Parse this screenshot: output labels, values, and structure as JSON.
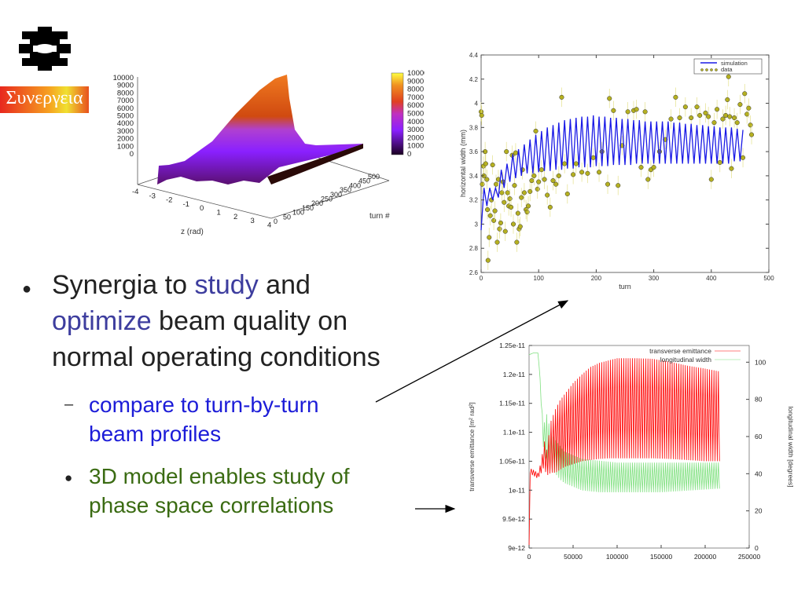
{
  "logos": {
    "lab_logo": "fermilab-logo-icon",
    "synergia_text": "Συνεργεια"
  },
  "bullets": {
    "main": {
      "marker": "●",
      "part1": "Synergia to ",
      "study": "study",
      "part2": " and",
      "optimize": "optimize",
      "part3": " beam quality on",
      "line3": "normal operating conditions"
    },
    "sub1": {
      "marker": "–",
      "line1": "compare to turn-by-turn",
      "line2": "beam profiles"
    },
    "sub2": {
      "marker": "●",
      "line1": "3D model enables study of",
      "line2": "phase space correlations"
    }
  },
  "colors": {
    "blue_text": "#1c1cd8",
    "purple_text": "#3d3d9e",
    "green_text": "#3a6b12",
    "simulation": "#1a1ae6",
    "data": "#b5b020",
    "emittance": "#ff0000",
    "longitudinal": "#7fe07f"
  },
  "chart_data": [
    {
      "type": "surface",
      "xlabel": "z (rad)",
      "ylabel": "turn #",
      "x_ticks": [
        "-4",
        "-3",
        "-2",
        "-1",
        "0",
        "1",
        "2",
        "3",
        "4"
      ],
      "y_ticks": [
        "0",
        "50",
        "100",
        "150",
        "200",
        "250",
        "300",
        "350",
        "400",
        "450",
        "500"
      ],
      "z_ticks": [
        "10000",
        "9000",
        "8000",
        "7000",
        "6000",
        "5000",
        "4000",
        "3000",
        "2000",
        "1000",
        "0"
      ],
      "colorbar_ticks": [
        "10000",
        "9000",
        "8000",
        "7000",
        "6000",
        "5000",
        "4000",
        "3000",
        "2000",
        "1000",
        "0"
      ],
      "xlim": [
        -4,
        4
      ],
      "ylim": [
        0,
        500
      ],
      "zlim": [
        0,
        10000
      ]
    },
    {
      "type": "scatter",
      "xlabel": "turn",
      "ylabel": "horizontal width (mm)",
      "xlim": [
        0,
        500
      ],
      "ylim": [
        2.6,
        4.4
      ],
      "x_ticks": [
        "0",
        "100",
        "200",
        "300",
        "400",
        "500"
      ],
      "y_ticks": [
        "2.6",
        "2.8",
        "3",
        "3.2",
        "3.4",
        "3.6",
        "3.8",
        "4",
        "4.2",
        "4.4"
      ],
      "legend": "top-right",
      "series": [
        {
          "name": "simulation",
          "style": "line",
          "x": [
            0,
            5,
            10,
            15,
            20,
            25,
            30,
            35,
            40,
            45,
            50,
            55,
            60,
            65,
            70,
            75,
            80,
            85,
            90,
            95,
            100,
            105,
            110,
            115,
            120,
            125,
            130,
            135,
            140,
            145,
            150,
            155,
            160,
            165,
            170,
            175,
            180,
            185,
            190,
            195,
            200,
            205,
            210,
            215,
            220,
            225,
            230,
            235,
            240,
            245,
            250,
            255,
            260,
            265,
            270,
            275,
            280,
            285,
            290,
            295,
            300,
            305,
            310,
            315,
            320,
            325,
            330,
            335,
            340,
            345,
            350,
            355,
            360,
            365,
            370,
            375,
            380,
            385,
            390,
            395,
            400,
            405,
            410,
            415,
            420,
            425,
            430,
            435,
            440,
            445,
            450,
            455
          ],
          "y": [
            2.95,
            3.3,
            3.15,
            3.3,
            3.2,
            3.3,
            3.22,
            3.45,
            3.3,
            3.5,
            3.35,
            3.58,
            3.38,
            3.62,
            3.4,
            3.66,
            3.42,
            3.7,
            3.42,
            3.74,
            3.43,
            3.77,
            3.44,
            3.8,
            3.44,
            3.82,
            3.45,
            3.84,
            3.45,
            3.86,
            3.46,
            3.87,
            3.46,
            3.88,
            3.47,
            3.89,
            3.47,
            3.89,
            3.47,
            3.9,
            3.48,
            3.89,
            3.48,
            3.89,
            3.48,
            3.88,
            3.49,
            3.88,
            3.49,
            3.87,
            3.49,
            3.87,
            3.49,
            3.86,
            3.5,
            3.86,
            3.5,
            3.85,
            3.5,
            3.85,
            3.5,
            3.85,
            3.5,
            3.85,
            3.5,
            3.85,
            3.5,
            3.84,
            3.5,
            3.84,
            3.5,
            3.83,
            3.5,
            3.83,
            3.5,
            3.82,
            3.5,
            3.82,
            3.5,
            3.81,
            3.5,
            3.81,
            3.5,
            3.8,
            3.5,
            3.8,
            3.5,
            3.8,
            3.52,
            3.79,
            3.52,
            3.78
          ]
        },
        {
          "name": "data",
          "style": "points",
          "error": 0.08,
          "x": [
            0,
            1,
            2,
            4,
            5,
            7,
            8,
            10,
            11,
            12,
            14,
            16,
            18,
            20,
            22,
            24,
            26,
            28,
            30,
            32,
            34,
            36,
            38,
            40,
            42,
            44,
            46,
            48,
            50,
            52,
            54,
            56,
            58,
            60,
            62,
            64,
            66,
            68,
            70,
            72,
            75,
            78,
            80,
            82,
            85,
            88,
            92,
            95,
            98,
            100,
            105,
            110,
            115,
            120,
            125,
            130,
            135,
            140,
            145,
            150,
            160,
            165,
            175,
            185,
            195,
            205,
            210,
            220,
            223,
            230,
            238,
            245,
            255,
            265,
            270,
            278,
            285,
            290,
            295,
            300,
            310,
            320,
            330,
            338,
            345,
            355,
            365,
            375,
            380,
            390,
            395,
            400,
            405,
            410,
            415,
            420,
            425,
            428,
            430,
            432,
            435,
            440,
            445,
            450,
            455,
            458,
            462,
            465,
            468,
            470
          ],
          "y": [
            3.93,
            3.9,
            3.33,
            3.48,
            3.4,
            3.6,
            3.5,
            3.37,
            3.12,
            2.7,
            2.89,
            3.07,
            3.2,
            3.49,
            3.03,
            3.11,
            3.33,
            2.85,
            3.37,
            2.96,
            3.01,
            3.26,
            3.35,
            3.18,
            2.94,
            3.6,
            3.26,
            3.15,
            3.21,
            3.14,
            3.57,
            3.0,
            3.32,
            3.59,
            2.85,
            3.09,
            2.96,
            2.98,
            3.22,
            3.45,
            3.26,
            3.12,
            3.1,
            3.15,
            3.27,
            3.36,
            3.4,
            3.77,
            3.29,
            3.35,
            3.45,
            3.37,
            3.24,
            3.14,
            3.36,
            3.33,
            3.4,
            4.05,
            3.5,
            3.25,
            3.41,
            3.5,
            3.43,
            3.42,
            3.55,
            3.43,
            3.6,
            3.33,
            4.04,
            3.94,
            3.32,
            3.65,
            3.93,
            3.94,
            3.95,
            3.47,
            3.93,
            3.37,
            3.45,
            3.47,
            3.6,
            3.7,
            3.87,
            4.05,
            3.88,
            3.97,
            3.88,
            3.97,
            3.9,
            3.92,
            3.89,
            3.37,
            3.84,
            3.95,
            3.51,
            3.87,
            3.9,
            4.03,
            4.22,
            3.89,
            3.46,
            3.88,
            3.84,
            3.99,
            3.55,
            4.08,
            3.91,
            3.96,
            3.82,
            3.74
          ]
        }
      ]
    },
    {
      "type": "line",
      "ylabel": "transverse emittance [m² rad²]",
      "y2label": "longitudinal width [degrees]",
      "xlim": [
        0,
        250000
      ],
      "ylim": [
        9e-12,
        1.25e-11
      ],
      "y2lim": [
        0,
        109
      ],
      "x_ticks": [
        "0",
        "50000",
        "100000",
        "150000",
        "200000",
        "250000"
      ],
      "y_ticks": [
        "9e-12",
        "9.5e-12",
        "1e-11",
        "1.05e-11",
        "1.1e-11",
        "1.15e-11",
        "1.2e-11",
        "1.25e-11"
      ],
      "y2_ticks": [
        "0",
        "20",
        "40",
        "60",
        "80",
        "100"
      ],
      "legend": "top-right",
      "series": [
        {
          "name": "transverse emittance",
          "axis": "left",
          "x": [
            0,
            1000,
            5000,
            10000,
            14000,
            17000,
            20000,
            25000,
            30000,
            35000,
            40000,
            50000,
            60000,
            70000,
            80000,
            90000,
            100000,
            120000,
            140000,
            160000,
            180000,
            200000,
            217000
          ],
          "upper": [
            9e-12,
            1.038e-11,
            1.035e-11,
            1.03e-11,
            1.05e-11,
            1.087e-11,
            1.07e-11,
            1.12e-11,
            1.14e-11,
            1.155e-11,
            1.165e-11,
            1.185e-11,
            1.2e-11,
            1.213e-11,
            1.22e-11,
            1.224e-11,
            1.228e-11,
            1.228e-11,
            1.227e-11,
            1.222e-11,
            1.215e-11,
            1.21e-11,
            1.205e-11
          ],
          "lower": [
            9e-12,
            1.028e-11,
            1.025e-11,
            1.02e-11,
            1.03e-11,
            1.04e-11,
            1.025e-11,
            1.03e-11,
            1.03e-11,
            1.035e-11,
            1.04e-11,
            1.045e-11,
            1.05e-11,
            1.052e-11,
            1.054e-11,
            1.055e-11,
            1.055e-11,
            1.055e-11,
            1.055e-11,
            1.054e-11,
            1.052e-11,
            1.05e-11,
            1.05e-11
          ]
        },
        {
          "name": "longitudinal width",
          "axis": "right",
          "x": [
            0,
            5000,
            10000,
            12000,
            16000,
            20000,
            25000,
            30000,
            35000,
            40000,
            60000,
            80000,
            100000,
            150000,
            217000
          ],
          "upper": [
            104,
            105,
            105,
            95,
            65,
            72,
            62,
            58,
            55,
            52,
            48,
            47,
            46,
            46,
            46
          ],
          "lower": [
            104,
            105,
            105,
            95,
            55,
            45,
            42,
            40,
            37,
            35,
            31,
            30,
            30,
            30,
            32
          ]
        }
      ]
    }
  ]
}
